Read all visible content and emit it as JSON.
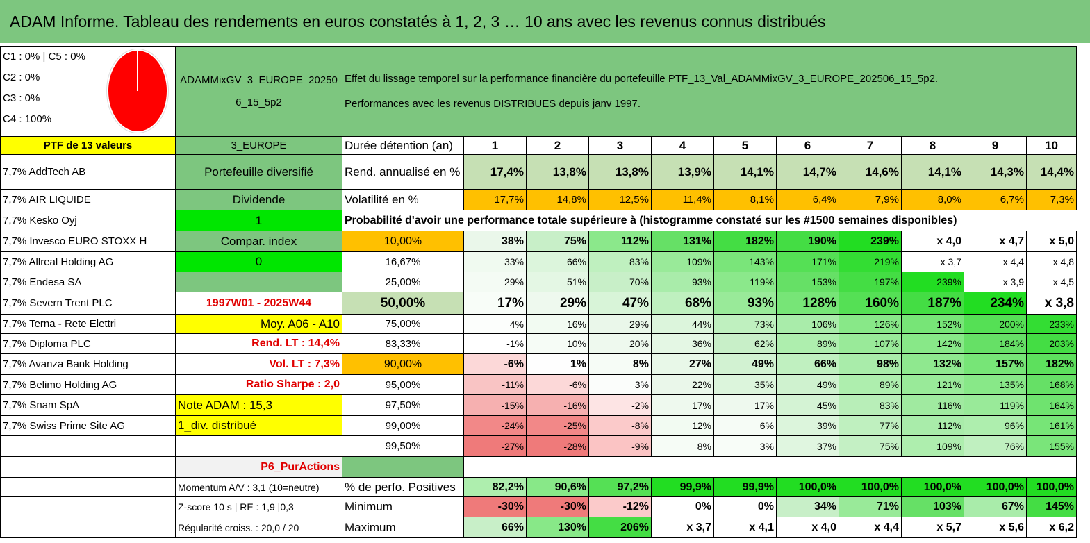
{
  "title": "ADAM Informe. Tableau des rendements en euros constatés à 1, 2, 3 … 10 ans avec les revenus connus distribués",
  "legend": [
    "C1 : 0% | C5 : 0%",
    "C2 : 0%",
    "C3 : 0%",
    "C4 : 100%"
  ],
  "pie": {
    "slices": [
      {
        "label": "C4",
        "value": 100,
        "color": "#ff0000"
      }
    ]
  },
  "portfolio_name": "ADAMMixGV_3_EUROPE_202506_15_5p2",
  "description": [
    "Effet du lissage temporel sur la performance financière du portefeuille PTF_13_Val_ADAMMixGV_3_EUROPE_202506_15_5p2.",
    "Performances avec les revenus DISTRIBUES depuis janv 1997."
  ],
  "ptf_count_label": "PTF de 13 valeurs",
  "zone_label": "3_EUROPE",
  "holdings": [
    "7,7% AddTech AB",
    "7,7% AIR LIQUIDE",
    "7,7% Kesko Oyj",
    "7,7% Invesco EURO STOXX H",
    "7,7% Allreal Holding AG",
    "7,7% Endesa SA",
    "7,7% Severn Trent PLC",
    "7,7% Terna - Rete Elettri",
    "7,7% Diploma PLC",
    "7,7% Avanza Bank Holding",
    "7,7% Belimo Holding AG",
    "7,7% Snam SpA",
    "7,7% Swiss Prime Site AG"
  ],
  "info": {
    "diversification": "Portefeuille diversifié",
    "dividend_label": "Dividende",
    "dividend_value": "1",
    "compar_label": "Compar. index",
    "compar_value": "0",
    "period": "1997W01 - 2025W44",
    "moy": "Moy. A06 - A10",
    "rend_lt": "Rend. LT : 14,4%",
    "vol_lt": "Vol. LT : 7,3%",
    "sharpe": "Ratio Sharpe : 2,0",
    "note": "Note ADAM : 15,3",
    "div": "1_div. distribué",
    "strategy": "P6_PurActions",
    "momentum": "Momentum A/V : 3,1 (10=neutre)",
    "zscore": "Z-score 10 s | RE : 1,9 |0,3",
    "regularite": "Régularité croiss. : 20,0 / 20"
  },
  "duration_label": "Durée détention (an)",
  "years": [
    "1",
    "2",
    "3",
    "4",
    "5",
    "6",
    "7",
    "8",
    "9",
    "10"
  ],
  "rend_label": "Rend. annualisé en %",
  "rend": [
    "17,4%",
    "13,8%",
    "13,8%",
    "13,9%",
    "14,1%",
    "14,7%",
    "14,6%",
    "14,1%",
    "14,3%",
    "14,4%"
  ],
  "vol_label": "Volatilité en %",
  "vol": [
    "17,7%",
    "14,8%",
    "12,5%",
    "11,4%",
    "8,1%",
    "6,4%",
    "7,9%",
    "8,0%",
    "6,7%",
    "7,3%"
  ],
  "prob_header": "Probabilité d'avoir une performance totale supérieure à (histogramme constaté sur les #1500 semaines disponibles)",
  "prob_rows": [
    {
      "p": "10,00%",
      "v": [
        "38%",
        "75%",
        "112%",
        "131%",
        "182%",
        "190%",
        "239%",
        "x 4,0",
        "x 4,7",
        "x 5,0"
      ]
    },
    {
      "p": "16,67%",
      "v": [
        "33%",
        "66%",
        "83%",
        "109%",
        "143%",
        "171%",
        "219%",
        "x 3,7",
        "x 4,4",
        "x 4,8"
      ]
    },
    {
      "p": "25,00%",
      "v": [
        "29%",
        "51%",
        "70%",
        "93%",
        "119%",
        "153%",
        "197%",
        "239%",
        "x 3,9",
        "x 4,5"
      ]
    },
    {
      "p": "50,00%",
      "v": [
        "17%",
        "29%",
        "47%",
        "68%",
        "93%",
        "128%",
        "160%",
        "187%",
        "234%",
        "x 3,8"
      ]
    },
    {
      "p": "75,00%",
      "v": [
        "4%",
        "16%",
        "29%",
        "44%",
        "73%",
        "106%",
        "126%",
        "152%",
        "200%",
        "233%"
      ]
    },
    {
      "p": "83,33%",
      "v": [
        "-1%",
        "10%",
        "20%",
        "36%",
        "62%",
        "89%",
        "107%",
        "142%",
        "184%",
        "203%"
      ]
    },
    {
      "p": "90,00%",
      "v": [
        "-6%",
        "1%",
        "8%",
        "27%",
        "49%",
        "66%",
        "98%",
        "132%",
        "157%",
        "182%"
      ]
    },
    {
      "p": "95,00%",
      "v": [
        "-11%",
        "-6%",
        "3%",
        "22%",
        "35%",
        "49%",
        "89%",
        "121%",
        "135%",
        "168%"
      ]
    },
    {
      "p": "97,50%",
      "v": [
        "-15%",
        "-16%",
        "-2%",
        "17%",
        "17%",
        "45%",
        "83%",
        "116%",
        "119%",
        "164%"
      ]
    },
    {
      "p": "99,00%",
      "v": [
        "-24%",
        "-25%",
        "-8%",
        "12%",
        "6%",
        "39%",
        "77%",
        "112%",
        "96%",
        "161%"
      ]
    },
    {
      "p": "99,50%",
      "v": [
        "-27%",
        "-28%",
        "-9%",
        "8%",
        "3%",
        "37%",
        "75%",
        "109%",
        "76%",
        "155%"
      ]
    }
  ],
  "positive_label": "% de perfo. Positives",
  "positive": [
    "82,2%",
    "90,6%",
    "97,2%",
    "99,9%",
    "99,9%",
    "100,0%",
    "100,0%",
    "100,0%",
    "100,0%",
    "100,0%"
  ],
  "min_label": "Minimum",
  "min": [
    "-30%",
    "-30%",
    "-12%",
    "0%",
    "0%",
    "34%",
    "71%",
    "103%",
    "67%",
    "145%"
  ],
  "max_label": "Maximum",
  "max": [
    "66%",
    "130%",
    "206%",
    "x 3,7",
    "x 4,1",
    "x 4,0",
    "x 4,4",
    "x 5,7",
    "x 5,6",
    "x 6,2"
  ]
}
